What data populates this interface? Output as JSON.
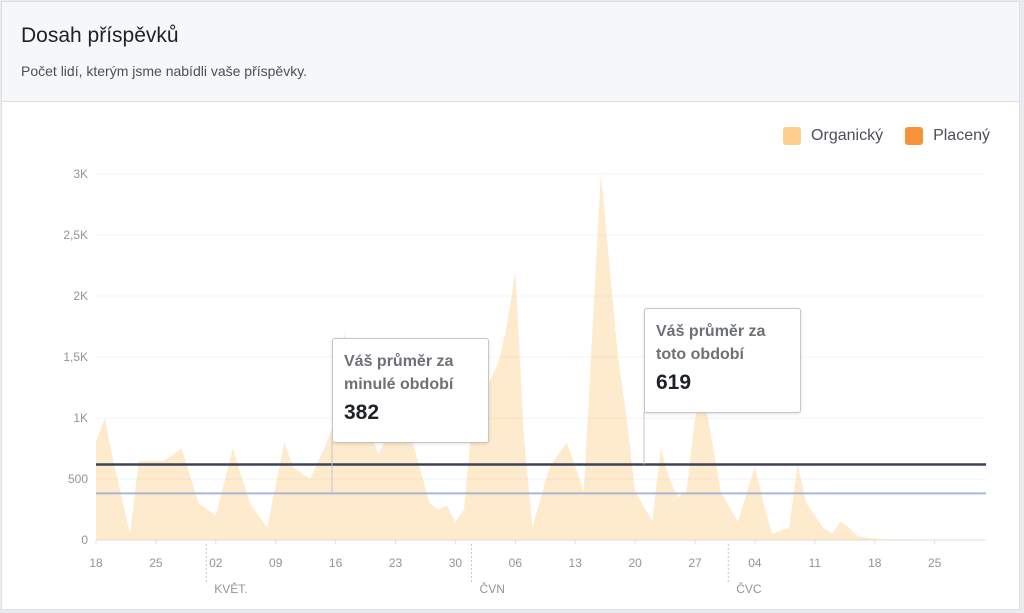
{
  "header": {
    "title": "Dosah příspěvků",
    "subtitle": "Počet lidí, kterým jsme nabídli vaše příspěvky."
  },
  "legend": [
    {
      "label": "Organický",
      "color": "#fdd08f"
    },
    {
      "label": "Placený",
      "color": "#f7923a"
    }
  ],
  "callouts": {
    "previous": {
      "text": "Váš průměr za minulé období",
      "value": "382"
    },
    "current": {
      "text": "Váš průměr za toto období",
      "value": "619"
    }
  },
  "chart_data": {
    "type": "area",
    "title": "",
    "xlabel": "",
    "ylabel": "",
    "ylim": [
      0,
      3000
    ],
    "y_ticks": [
      {
        "value": 0,
        "label": "0"
      },
      {
        "value": 500,
        "label": "500"
      },
      {
        "value": 1000,
        "label": "1K"
      },
      {
        "value": 1500,
        "label": "1,5K"
      },
      {
        "value": 2000,
        "label": "2K"
      },
      {
        "value": 2500,
        "label": "2,5K"
      },
      {
        "value": 3000,
        "label": "3K"
      }
    ],
    "x_start": "2018-04-18",
    "x_end": "2018-07-31",
    "x_ticks": [
      {
        "date": "2018-04-18",
        "label": "18"
      },
      {
        "date": "2018-04-25",
        "label": "25"
      },
      {
        "date": "2018-05-02",
        "label": "02"
      },
      {
        "date": "2018-05-09",
        "label": "09"
      },
      {
        "date": "2018-05-16",
        "label": "16"
      },
      {
        "date": "2018-05-23",
        "label": "23"
      },
      {
        "date": "2018-05-30",
        "label": "30"
      },
      {
        "date": "2018-06-06",
        "label": "06"
      },
      {
        "date": "2018-06-13",
        "label": "13"
      },
      {
        "date": "2018-06-20",
        "label": "20"
      },
      {
        "date": "2018-06-27",
        "label": "27"
      },
      {
        "date": "2018-07-04",
        "label": "04"
      },
      {
        "date": "2018-07-11",
        "label": "11"
      },
      {
        "date": "2018-07-18",
        "label": "18"
      },
      {
        "date": "2018-07-25",
        "label": "25"
      }
    ],
    "month_labels": [
      {
        "date": "2018-05-01",
        "label": "KVĚT."
      },
      {
        "date": "2018-06-01",
        "label": "ČVN"
      },
      {
        "date": "2018-07-01",
        "label": "ČVC"
      }
    ],
    "series": [
      {
        "name": "Organický",
        "color": "#fdd08f",
        "x": [
          "2018-04-18",
          "2018-04-19",
          "2018-04-20",
          "2018-04-22",
          "2018-04-23",
          "2018-04-24",
          "2018-04-26",
          "2018-04-28",
          "2018-04-30",
          "2018-05-02",
          "2018-05-04",
          "2018-05-06",
          "2018-05-08",
          "2018-05-10",
          "2018-05-11",
          "2018-05-13",
          "2018-05-15",
          "2018-05-16",
          "2018-05-17",
          "2018-05-19",
          "2018-05-21",
          "2018-05-23",
          "2018-05-25",
          "2018-05-27",
          "2018-05-28",
          "2018-05-29",
          "2018-05-30",
          "2018-05-31",
          "2018-06-01",
          "2018-06-02",
          "2018-06-04",
          "2018-06-05",
          "2018-06-06",
          "2018-06-07",
          "2018-06-08",
          "2018-06-10",
          "2018-06-12",
          "2018-06-14",
          "2018-06-16",
          "2018-06-18",
          "2018-06-19",
          "2018-06-20",
          "2018-06-22",
          "2018-06-23",
          "2018-06-24",
          "2018-06-25",
          "2018-06-26",
          "2018-06-27",
          "2018-06-28",
          "2018-06-29",
          "2018-06-30",
          "2018-07-02",
          "2018-07-04",
          "2018-07-05",
          "2018-07-06",
          "2018-07-08",
          "2018-07-09",
          "2018-07-10",
          "2018-07-12",
          "2018-07-13",
          "2018-07-14",
          "2018-07-15",
          "2018-07-16",
          "2018-07-17",
          "2018-07-18",
          "2018-07-20",
          "2018-07-22",
          "2018-07-24",
          "2018-07-26",
          "2018-07-28",
          "2018-07-31"
        ],
        "values": [
          800,
          1000,
          650,
          50,
          650,
          650,
          650,
          750,
          300,
          200,
          750,
          300,
          100,
          800,
          600,
          500,
          800,
          1000,
          1700,
          1100,
          700,
          1000,
          800,
          300,
          250,
          280,
          150,
          250,
          1000,
          1150,
          1450,
          1750,
          2200,
          850,
          100,
          600,
          800,
          400,
          3000,
          1500,
          1000,
          400,
          150,
          750,
          500,
          350,
          400,
          1000,
          1200,
          800,
          400,
          150,
          600,
          300,
          50,
          100,
          620,
          300,
          100,
          50,
          150,
          100,
          30,
          20,
          10,
          5,
          5,
          0,
          0,
          0,
          0
        ]
      },
      {
        "name": "Placený",
        "color": "#f7923a",
        "x": [
          "2018-04-18",
          "2018-07-31"
        ],
        "values": [
          0,
          0
        ]
      }
    ],
    "reference_lines": [
      {
        "value": 382,
        "color": "#a9b6d6"
      },
      {
        "value": 619,
        "color": "#3b4358"
      }
    ]
  }
}
